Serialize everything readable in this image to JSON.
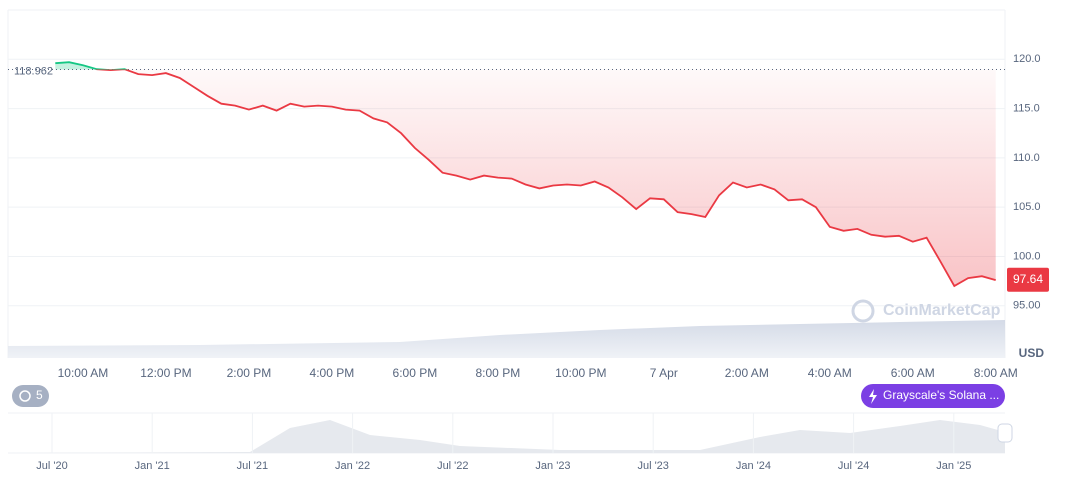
{
  "chart_data": {
    "type": "line",
    "categories": [
      null,
      null,
      "10:00 AM",
      null,
      null,
      null,
      null,
      null,
      "12:00 PM",
      null,
      null,
      null,
      null,
      null,
      "2:00 PM",
      null,
      null,
      null,
      null,
      null,
      "4:00 PM",
      null,
      null,
      null,
      null,
      null,
      "6:00 PM",
      null,
      null,
      null,
      null,
      null,
      "8:00 PM",
      null,
      null,
      null,
      null,
      null,
      "10:00 PM",
      null,
      null,
      null,
      null,
      null,
      "7 Apr",
      null,
      null,
      null,
      null,
      null,
      "2:00 AM",
      null,
      null,
      null,
      null,
      null,
      "4:00 AM",
      null,
      null,
      null,
      null,
      null,
      "6:00 AM",
      null,
      null,
      null,
      null,
      null,
      "8:00 AM"
    ],
    "values": [
      119.6,
      119.7,
      119.4,
      119.0,
      118.9,
      119.0,
      118.5,
      118.4,
      118.6,
      118.1,
      117.2,
      116.3,
      115.5,
      115.3,
      114.9,
      115.3,
      114.8,
      115.5,
      115.2,
      115.3,
      115.2,
      114.9,
      114.8,
      114.0,
      113.6,
      112.5,
      111.0,
      109.8,
      108.5,
      108.2,
      107.8,
      108.2,
      108.0,
      107.9,
      107.3,
      106.9,
      107.2,
      107.3,
      107.2,
      107.6,
      107.0,
      106.0,
      104.8,
      105.9,
      105.8,
      104.5,
      104.3,
      104.0,
      106.2,
      107.5,
      107.0,
      107.3,
      106.8,
      105.7,
      105.8,
      105.0,
      103.0,
      102.6,
      102.8,
      102.2,
      102.0,
      102.1,
      101.5,
      101.9,
      99.5,
      97.0,
      97.8,
      98.0,
      97.6
    ],
    "up_color": "#16c784",
    "down_color": "#ea3943",
    "reference_line": 118.962,
    "current_price": 97.64,
    "y_axis_label": "USD",
    "ylim": [
      89.7,
      125
    ],
    "yticks": [
      {
        "value": 95,
        "label": "95.00"
      },
      {
        "value": 100,
        "label": "100.0"
      },
      {
        "value": 105,
        "label": "105.0"
      },
      {
        "value": 110,
        "label": "110.0"
      },
      {
        "value": 115,
        "label": "115.0"
      },
      {
        "value": 120,
        "label": "120.0"
      }
    ],
    "watermark": "CoinMarketCap",
    "badge": "5",
    "event_label": "Grayscale's Solana ...",
    "navigator_labels": [
      "Jul '20",
      "Jan '21",
      "Jul '21",
      "Jan '22",
      "Jul '22",
      "Jan '23",
      "Jul '23",
      "Jan '24",
      "Jul '24",
      "Jan '25"
    ]
  }
}
